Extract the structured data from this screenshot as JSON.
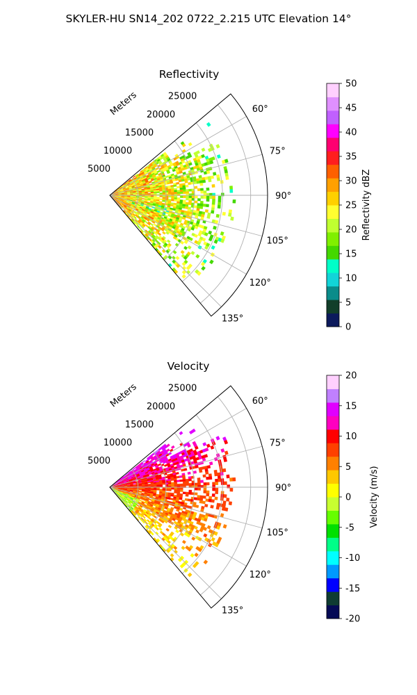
{
  "figure_title": "SKYLER-HU  SN14_202  0722_2.215 UTC Elevation 14°",
  "palette": {
    "reflectivity_cmap": [
      "#0c1a5c",
      "#123e2a",
      "#0a8c8a",
      "#12d4d8",
      "#00ffc8",
      "#44d800",
      "#80f000",
      "#c0ff30",
      "#ffff30",
      "#ffd000",
      "#ffa000",
      "#ff6000",
      "#ff1e1e",
      "#ff0070",
      "#ff00ff",
      "#c060ff",
      "#e090ff",
      "#ffd0ff"
    ],
    "velocity_cmap": [
      "#050a55",
      "#0f3c32",
      "#0000ff",
      "#0099ff",
      "#00ffff",
      "#00ff88",
      "#00e000",
      "#66ff00",
      "#c8ff30",
      "#ffff00",
      "#ffc800",
      "#ff8000",
      "#ff4000",
      "#ff0000",
      "#ff00c0",
      "#e000ff",
      "#c080ff",
      "#ffd0ff"
    ],
    "grid_color": "#b0b0b0"
  },
  "chart_data": [
    {
      "type": "heatmap",
      "subplot": "polar-sector",
      "title": "Reflectivity",
      "radial_label": "Meters",
      "radial_ticks": [
        "5000",
        "10000",
        "15000",
        "20000",
        "25000"
      ],
      "radial_tick_values": [
        5000,
        10000,
        15000,
        20000,
        25000
      ],
      "radial_range": [
        0,
        28000
      ],
      "angle_range_deg": [
        50,
        140
      ],
      "angle_ticks": [
        "60°",
        "75°",
        "90°",
        "105°",
        "120°",
        "135°"
      ],
      "angle_tick_values": [
        60,
        75,
        90,
        105,
        120,
        135
      ],
      "colorbar": {
        "label": "Reflectivity dBZ",
        "range": [
          0,
          50
        ],
        "ticks": [
          "0",
          "5",
          "10",
          "15",
          "20",
          "25",
          "30",
          "35",
          "40",
          "45",
          "50"
        ],
        "tick_values": [
          0,
          5,
          10,
          15,
          20,
          25,
          30,
          35,
          40,
          45,
          50
        ]
      },
      "data_summary": {
        "echo_extent_m": [
          0,
          22000
        ],
        "near_range_value": 28,
        "far_range_value": 18
      }
    },
    {
      "type": "heatmap",
      "subplot": "polar-sector",
      "title": "Velocity",
      "radial_label": "Meters",
      "radial_ticks": [
        "5000",
        "10000",
        "15000",
        "20000",
        "25000"
      ],
      "radial_tick_values": [
        5000,
        10000,
        15000,
        20000,
        25000
      ],
      "radial_range": [
        0,
        28000
      ],
      "angle_range_deg": [
        50,
        140
      ],
      "angle_ticks": [
        "60°",
        "75°",
        "90°",
        "105°",
        "120°",
        "135°"
      ],
      "angle_tick_values": [
        60,
        75,
        90,
        105,
        120,
        135
      ],
      "colorbar": {
        "label": "Velocity (m/s)",
        "range": [
          -20,
          20
        ],
        "ticks": [
          "-20",
          "-15",
          "-10",
          "-5",
          "0",
          "5",
          "10",
          "15",
          "20"
        ],
        "tick_values": [
          -20,
          -15,
          -10,
          -5,
          0,
          5,
          10,
          15,
          20
        ]
      },
      "data_summary": {
        "echo_extent_m": [
          0,
          22000
        ],
        "north_sector_value": 14,
        "south_sector_value": 2
      }
    }
  ]
}
